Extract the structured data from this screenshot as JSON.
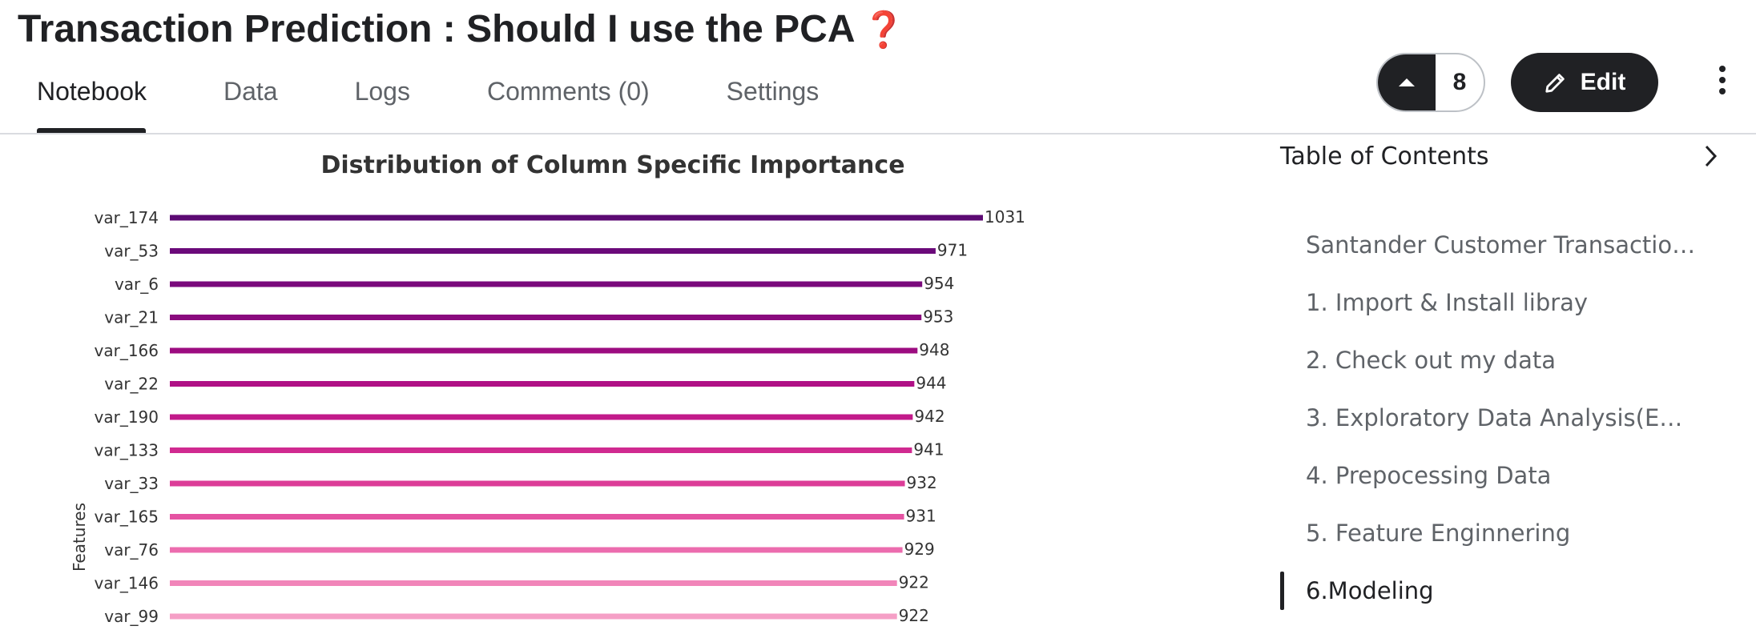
{
  "header": {
    "title": "Transaction Prediction : Should I use the PCA",
    "title_emoji": "❓"
  },
  "tabs": [
    {
      "label": "Notebook",
      "active": true
    },
    {
      "label": "Data",
      "active": false
    },
    {
      "label": "Logs",
      "active": false
    },
    {
      "label": "Comments (0)",
      "active": false
    },
    {
      "label": "Settings",
      "active": false
    }
  ],
  "actions": {
    "vote_count": "8",
    "edit_label": "Edit",
    "vote_icon": "triangle-up-icon",
    "edit_icon": "pencil-icon",
    "more_icon": "kebab-menu-icon"
  },
  "toc": {
    "title": "Table of Contents",
    "toggle_icon": "chevron-right-icon",
    "items": [
      {
        "label": "Santander Customer Transaction...",
        "active": false
      },
      {
        "label": "1. Import & Install libray",
        "active": false
      },
      {
        "label": "2. Check out my data",
        "active": false
      },
      {
        "label": "3. Exploratory Data Analysis(EDA...",
        "active": false
      },
      {
        "label": "4. Prepocessing Data",
        "active": false
      },
      {
        "label": "5. Feature Enginnering",
        "active": false
      },
      {
        "label": "6.Modeling",
        "active": true
      }
    ]
  },
  "chart_data": {
    "type": "bar",
    "orientation": "horizontal",
    "title": "Distribution of Column Specific Importance",
    "ylabel": "Features",
    "xlabel": "",
    "categories": [
      "var_174",
      "var_53",
      "var_6",
      "var_21",
      "var_166",
      "var_22",
      "var_190",
      "var_133",
      "var_33",
      "var_165",
      "var_76",
      "var_146",
      "var_99"
    ],
    "values": [
      1031,
      971,
      954,
      953,
      948,
      944,
      942,
      941,
      932,
      931,
      929,
      922,
      922
    ],
    "xlim": [
      0,
      1031
    ],
    "colors": [
      "#5c0a73",
      "#6b0a7a",
      "#7a0a7c",
      "#8a0b7e",
      "#9c0c80",
      "#b01186",
      "#c21a8a",
      "#d02a90",
      "#dc3d98",
      "#e553a2",
      "#ec6cae",
      "#f185b9",
      "#f59fc6"
    ],
    "grid": false,
    "legend": "none"
  }
}
